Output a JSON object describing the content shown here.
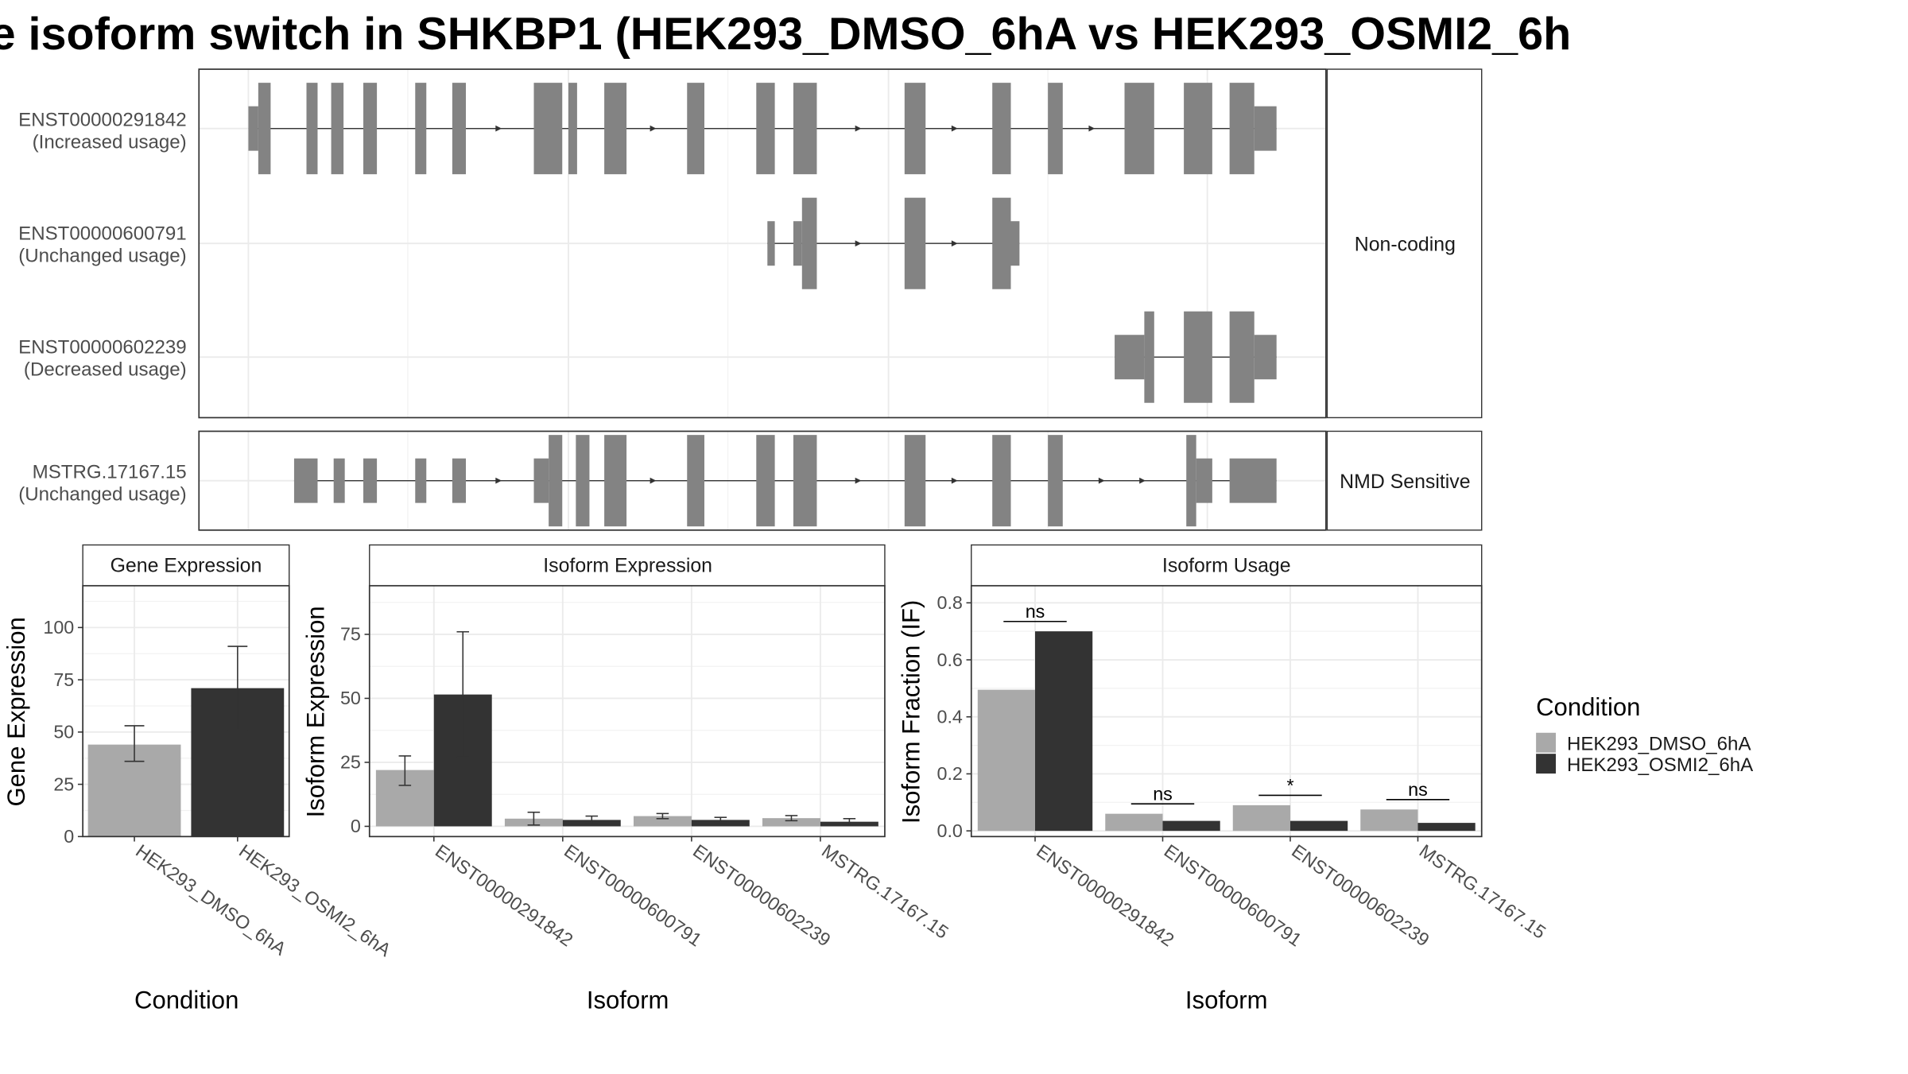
{
  "title": "e isoform switch in SHKBP1 (HEK293_DMSO_6hA vs HEK293_OSMI2_6h",
  "colors": {
    "DMSO": "#a9a9a9",
    "OSMI2": "#333333",
    "exon": "#838383"
  },
  "structure": {
    "facets": [
      {
        "label": "Non-coding",
        "isoforms": [
          {
            "id": "ENST00000291842",
            "usage": "(Increased usage)"
          },
          {
            "id": "ENST00000600791",
            "usage": "(Unchanged usage)"
          },
          {
            "id": "ENST00000602239",
            "usage": "(Decreased usage)"
          }
        ]
      },
      {
        "label": "NMD Sensitive",
        "isoforms": [
          {
            "id": "MSTRG.17167.15",
            "usage": "(Unchanged usage)"
          }
        ]
      }
    ]
  },
  "legend": {
    "title": "Condition",
    "items": [
      {
        "label": "HEK293_DMSO_6hA",
        "color": "#a9a9a9"
      },
      {
        "label": "HEK293_OSMI2_6hA",
        "color": "#333333"
      }
    ]
  },
  "chart_data": [
    {
      "type": "bar",
      "panel_title": "Gene Expression",
      "xlabel": "Condition",
      "ylabel": "Gene Expression",
      "categories": [
        "HEK293_DMSO_6hA",
        "HEK293_OSMI2_6hA"
      ],
      "values": [
        44,
        71
      ],
      "error_low": [
        36,
        51
      ],
      "error_high": [
        53,
        91
      ],
      "ylim": [
        0,
        120
      ],
      "yticks": [
        0,
        25,
        50,
        75,
        100
      ]
    },
    {
      "type": "bar",
      "panel_title": "Isoform Expression",
      "xlabel": "Isoform",
      "ylabel": "Isoform Expression",
      "categories": [
        "ENST00000291842",
        "ENST00000600791",
        "ENST00000602239",
        "MSTRG.17167.15"
      ],
      "series": [
        {
          "name": "HEK293_DMSO_6hA",
          "values": [
            22,
            3,
            4,
            3.2
          ],
          "error_low": [
            16,
            0.5,
            3,
            2.2
          ],
          "error_high": [
            27.5,
            5.5,
            5,
            4.2
          ]
        },
        {
          "name": "HEK293_OSMI2_6hA",
          "values": [
            51.5,
            2.5,
            2.5,
            1.8
          ],
          "error_low": [
            27,
            1,
            1.5,
            0.5
          ],
          "error_high": [
            76,
            4,
            3.5,
            3
          ]
        }
      ],
      "ylim": [
        -4,
        94
      ],
      "yticks": [
        0,
        25,
        50,
        75
      ]
    },
    {
      "type": "bar",
      "panel_title": "Isoform Usage",
      "xlabel": "Isoform",
      "ylabel": "Isoform Fraction (IF)",
      "categories": [
        "ENST00000291842",
        "ENST00000600791",
        "ENST00000602239",
        "MSTRG.17167.15"
      ],
      "series": [
        {
          "name": "HEK293_DMSO_6hA",
          "values": [
            0.495,
            0.06,
            0.09,
            0.075
          ]
        },
        {
          "name": "HEK293_OSMI2_6hA",
          "values": [
            0.7,
            0.035,
            0.035,
            0.028
          ]
        }
      ],
      "significance": [
        "ns",
        "ns",
        "*",
        "ns"
      ],
      "ylim": [
        -0.02,
        0.86
      ],
      "yticks": [
        0.0,
        0.2,
        0.4,
        0.6,
        0.8
      ]
    }
  ]
}
